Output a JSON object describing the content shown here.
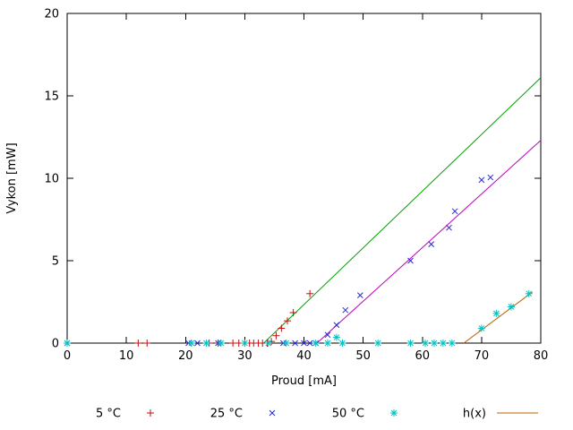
{
  "chart_data": {
    "type": "scatter",
    "title": "",
    "xlabel": "Proud [mA]",
    "ylabel": "Vykon [mW]",
    "xlim": [
      0,
      80
    ],
    "ylim": [
      0,
      20
    ],
    "xticks": [
      0,
      10,
      20,
      30,
      40,
      50,
      60,
      70,
      80
    ],
    "yticks": [
      0,
      5,
      10,
      15,
      20
    ],
    "grid": false,
    "legend_position": "bottom-outside",
    "series": [
      {
        "id": "series-5c",
        "name": "5 °C",
        "kind": "points",
        "marker": "plus",
        "color": "#c01010",
        "in_legend": true,
        "points": [
          [
            0,
            0
          ],
          [
            12,
            0
          ],
          [
            13.5,
            0
          ],
          [
            24,
            0
          ],
          [
            25.5,
            0
          ],
          [
            28,
            0
          ],
          [
            29,
            0
          ],
          [
            30,
            0
          ],
          [
            30.8,
            0
          ],
          [
            31.5,
            0
          ],
          [
            32.3,
            0
          ],
          [
            33,
            0
          ],
          [
            33.8,
            0
          ],
          [
            34.5,
            0.1
          ],
          [
            35.3,
            0.45
          ],
          [
            36.2,
            0.9
          ],
          [
            37.2,
            1.35
          ],
          [
            38.2,
            1.85
          ],
          [
            41,
            3.0
          ]
        ]
      },
      {
        "id": "series-25c",
        "name": "25 °C",
        "kind": "points",
        "marker": "cross",
        "color": "#2828e0",
        "in_legend": true,
        "points": [
          [
            0,
            0
          ],
          [
            20.5,
            0
          ],
          [
            22,
            0
          ],
          [
            25.5,
            0
          ],
          [
            36.5,
            0
          ],
          [
            38.5,
            0
          ],
          [
            40,
            0
          ],
          [
            41,
            0
          ],
          [
            42,
            0
          ],
          [
            44,
            0.5
          ],
          [
            45.5,
            1.1
          ],
          [
            47,
            2.0
          ],
          [
            49.5,
            2.9
          ],
          [
            58,
            5.0
          ],
          [
            61.5,
            6.0
          ],
          [
            64.5,
            7.0
          ],
          [
            65.5,
            8.0
          ],
          [
            70,
            9.9
          ],
          [
            71.5,
            10.05
          ]
        ]
      },
      {
        "id": "series-50c",
        "name": "50 °C",
        "kind": "points",
        "marker": "asterisk",
        "color": "#00c2c2",
        "in_legend": true,
        "points": [
          [
            0,
            0
          ],
          [
            21,
            0
          ],
          [
            23.5,
            0
          ],
          [
            26,
            0
          ],
          [
            30,
            0
          ],
          [
            34,
            0
          ],
          [
            37,
            0
          ],
          [
            42,
            0
          ],
          [
            44,
            0
          ],
          [
            45.5,
            0.35
          ],
          [
            46.5,
            0
          ],
          [
            52.5,
            0
          ],
          [
            58,
            0
          ],
          [
            60.5,
            0
          ],
          [
            62,
            0
          ],
          [
            63.5,
            0
          ],
          [
            65,
            0
          ],
          [
            70,
            0.9
          ],
          [
            72.5,
            1.8
          ],
          [
            75,
            2.2
          ],
          [
            78,
            3.0
          ]
        ]
      },
      {
        "id": "fit-line-green",
        "name": "",
        "kind": "line",
        "color": "#00a000",
        "in_legend": false,
        "points": [
          [
            33.2,
            0
          ],
          [
            80,
            16.1
          ]
        ]
      },
      {
        "id": "fit-line-magenta",
        "name": "",
        "kind": "line",
        "color": "#c000c0",
        "in_legend": false,
        "points": [
          [
            42.2,
            0
          ],
          [
            80,
            12.3
          ]
        ]
      },
      {
        "id": "fit-line-hx",
        "name": "h(x)",
        "kind": "line",
        "color": "#c06000",
        "in_legend": true,
        "points": [
          [
            67,
            0
          ],
          [
            78.6,
            3.1
          ]
        ]
      }
    ]
  }
}
